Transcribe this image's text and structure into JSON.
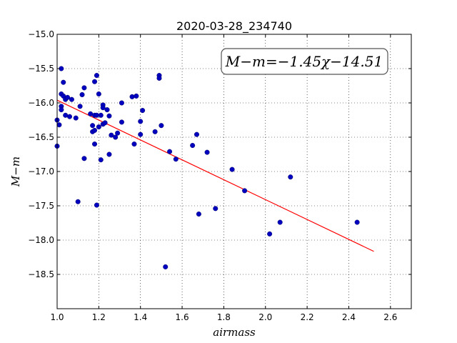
{
  "chart_data": {
    "type": "scatter",
    "title": "2020-03-28_234740",
    "xlabel": "airmass",
    "ylabel": "M−m",
    "xlim": [
      1.0,
      2.7
    ],
    "ylim": [
      -15.0,
      -19.0
    ],
    "y_inverted": true,
    "grid": true,
    "xticks": [
      "1.0",
      "1.2",
      "1.4",
      "1.6",
      "1.8",
      "2.0",
      "2.2",
      "2.4",
      "2.6"
    ],
    "xtick_values": [
      1.0,
      1.2,
      1.4,
      1.6,
      1.8,
      2.0,
      2.2,
      2.4,
      2.6
    ],
    "yticks": [
      "−15.0",
      "−15.5",
      "−16.0",
      "−16.5",
      "−17.0",
      "−17.5",
      "−18.0",
      "−18.5"
    ],
    "ytick_values": [
      -15.0,
      -15.5,
      -16.0,
      -16.5,
      -17.0,
      -17.5,
      -18.0,
      -18.5
    ],
    "annotation": "M−m=−1.45χ−14.51",
    "fit": {
      "slope": -1.45,
      "intercept": -14.51,
      "x_range": [
        1.0,
        2.52
      ],
      "color": "#ff0000"
    },
    "marker_color": "#0000bf",
    "series": [
      {
        "points": [
          [
            1.0,
            -16.63
          ],
          [
            1.0,
            -16.25
          ],
          [
            1.01,
            -16.32
          ],
          [
            1.02,
            -15.87
          ],
          [
            1.02,
            -16.05
          ],
          [
            1.02,
            -16.1
          ],
          [
            1.02,
            -15.5
          ],
          [
            1.03,
            -15.9
          ],
          [
            1.03,
            -15.7
          ],
          [
            1.04,
            -15.95
          ],
          [
            1.04,
            -16.18
          ],
          [
            1.05,
            -15.92
          ],
          [
            1.06,
            -16.2
          ],
          [
            1.07,
            -15.95
          ],
          [
            1.09,
            -16.22
          ],
          [
            1.1,
            -17.44
          ],
          [
            1.11,
            -16.05
          ],
          [
            1.12,
            -15.88
          ],
          [
            1.13,
            -15.78
          ],
          [
            1.13,
            -16.81
          ],
          [
            1.16,
            -16.16
          ],
          [
            1.17,
            -16.33
          ],
          [
            1.17,
            -16.42
          ],
          [
            1.18,
            -16.18
          ],
          [
            1.18,
            -16.4
          ],
          [
            1.18,
            -15.69
          ],
          [
            1.18,
            -16.6
          ],
          [
            1.19,
            -16.18
          ],
          [
            1.19,
            -15.6
          ],
          [
            1.19,
            -17.49
          ],
          [
            1.2,
            -16.35
          ],
          [
            1.2,
            -15.87
          ],
          [
            1.21,
            -16.83
          ],
          [
            1.21,
            -16.18
          ],
          [
            1.22,
            -16.03
          ],
          [
            1.22,
            -16.07
          ],
          [
            1.22,
            -16.31
          ],
          [
            1.23,
            -16.29
          ],
          [
            1.24,
            -16.1
          ],
          [
            1.25,
            -16.19
          ],
          [
            1.25,
            -16.75
          ],
          [
            1.26,
            -16.47
          ],
          [
            1.28,
            -16.5
          ],
          [
            1.29,
            -16.44
          ],
          [
            1.31,
            -16.0
          ],
          [
            1.31,
            -16.28
          ],
          [
            1.36,
            -15.91
          ],
          [
            1.37,
            -16.6
          ],
          [
            1.38,
            -15.9
          ],
          [
            1.4,
            -16.46
          ],
          [
            1.4,
            -16.27
          ],
          [
            1.41,
            -16.11
          ],
          [
            1.47,
            -16.42
          ],
          [
            1.49,
            -15.6
          ],
          [
            1.49,
            -15.64
          ],
          [
            1.5,
            -16.33
          ],
          [
            1.52,
            -18.39
          ],
          [
            1.54,
            -16.71
          ],
          [
            1.57,
            -16.82
          ],
          [
            1.65,
            -16.62
          ],
          [
            1.67,
            -16.46
          ],
          [
            1.68,
            -17.62
          ],
          [
            1.72,
            -16.72
          ],
          [
            1.76,
            -17.54
          ],
          [
            1.84,
            -16.97
          ],
          [
            1.9,
            -17.28
          ],
          [
            2.02,
            -17.91
          ],
          [
            2.07,
            -17.74
          ],
          [
            2.12,
            -17.08
          ],
          [
            2.44,
            -17.74
          ]
        ]
      }
    ]
  }
}
